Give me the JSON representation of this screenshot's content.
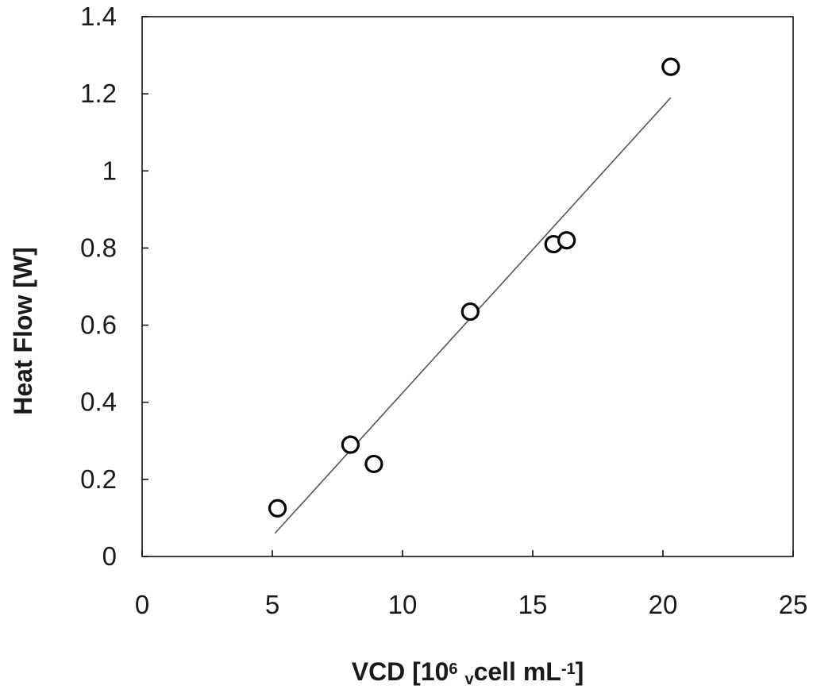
{
  "chart_data": {
    "type": "scatter",
    "title": "",
    "xlabel": {
      "parts": [
        {
          "text": "VCD [10",
          "style": "normal"
        },
        {
          "text": "6",
          "style": "sup"
        },
        {
          "text": " ",
          "style": "normal"
        },
        {
          "text": "v",
          "style": "sub"
        },
        {
          "text": "cell mL",
          "style": "normal"
        },
        {
          "text": "-1",
          "style": "sup"
        },
        {
          "text": "]",
          "style": "normal"
        }
      ]
    },
    "ylabel": "Heat Flow [W]",
    "xlim": [
      0,
      25
    ],
    "ylim": [
      0,
      1.4
    ],
    "x_ticks": [
      0,
      5,
      10,
      15,
      20,
      25
    ],
    "y_ticks": [
      0,
      0.2,
      0.4,
      0.6,
      0.8,
      1,
      1.2,
      1.4
    ],
    "x_tick_labels": [
      "0",
      "5",
      "10",
      "15",
      "20",
      "25"
    ],
    "y_tick_labels": [
      "0",
      "0.2",
      "0.4",
      "0.6",
      "0.8",
      "1",
      "1.2",
      "1.4"
    ],
    "grid": false,
    "legend": "none",
    "series": [
      {
        "marker": "open-circle",
        "points": [
          {
            "x": 5.2,
            "y": 0.125
          },
          {
            "x": 8.0,
            "y": 0.29
          },
          {
            "x": 8.9,
            "y": 0.24
          },
          {
            "x": 12.6,
            "y": 0.635
          },
          {
            "x": 15.8,
            "y": 0.81
          },
          {
            "x": 16.3,
            "y": 0.82
          },
          {
            "x": 20.3,
            "y": 1.27
          }
        ]
      }
    ],
    "trendline": {
      "type": "linear",
      "from": {
        "x": 5.1,
        "y": 0.06
      },
      "to": {
        "x": 20.3,
        "y": 1.19
      }
    },
    "colors": {
      "marker_stroke": "#000000",
      "marker_fill": "#ffffff",
      "trendline": "#555555",
      "axis": "#000000"
    }
  }
}
